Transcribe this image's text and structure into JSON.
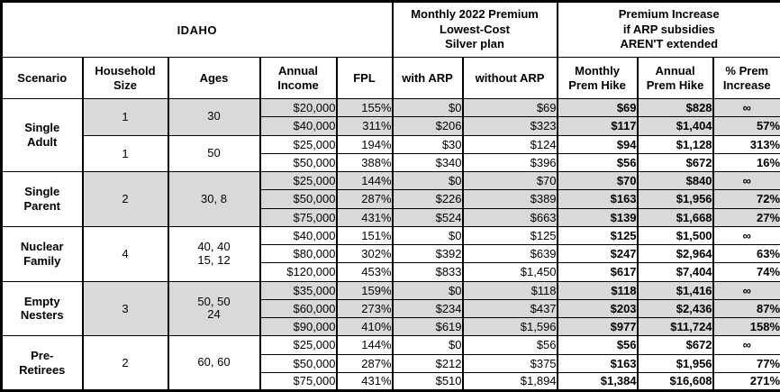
{
  "colors": {
    "shaded_row": "#d9d9d9",
    "border": "#000000",
    "background": "#ffffff",
    "text": "#000000"
  },
  "chart_data": {
    "type": "table",
    "title": "IDAHO",
    "infinity": "∞",
    "header_groups": {
      "premium": "Monthly 2022 Premium\nLowest-Cost\nSilver plan",
      "increase": "Premium Increase\nif ARP subsidies\nAREN'T extended"
    },
    "columns": {
      "scenario": "Scenario",
      "household": "Household\nSize",
      "ages": "Ages",
      "income": "Annual\nIncome",
      "fpl": "FPL",
      "with_arp": "with ARP",
      "without_arp": "without ARP",
      "monthly_hike": "Monthly\nPrem Hike",
      "annual_hike": "Annual\nPrem Hike",
      "pct_increase": "% Prem\nIncrease"
    },
    "groups": [
      {
        "scenario": "Single\nAdult",
        "subgroups": [
          {
            "household": "1",
            "ages": "30",
            "shaded": true,
            "rows": [
              {
                "income": "$20,000",
                "fpl": "155%",
                "with_arp": "$0",
                "without_arp": "$69",
                "monthly_hike": "$69",
                "annual_hike": "$828",
                "pct_increase": "∞"
              },
              {
                "income": "$40,000",
                "fpl": "311%",
                "with_arp": "$206",
                "without_arp": "$323",
                "monthly_hike": "$117",
                "annual_hike": "$1,404",
                "pct_increase": "57%"
              }
            ]
          },
          {
            "household": "1",
            "ages": "50",
            "shaded": false,
            "rows": [
              {
                "income": "$25,000",
                "fpl": "194%",
                "with_arp": "$30",
                "without_arp": "$124",
                "monthly_hike": "$94",
                "annual_hike": "$1,128",
                "pct_increase": "313%"
              },
              {
                "income": "$50,000",
                "fpl": "388%",
                "with_arp": "$340",
                "without_arp": "$396",
                "monthly_hike": "$56",
                "annual_hike": "$672",
                "pct_increase": "16%"
              }
            ]
          }
        ]
      },
      {
        "scenario": "Single\nParent",
        "subgroups": [
          {
            "household": "2",
            "ages": "30, 8",
            "shaded": true,
            "rows": [
              {
                "income": "$25,000",
                "fpl": "144%",
                "with_arp": "$0",
                "without_arp": "$70",
                "monthly_hike": "$70",
                "annual_hike": "$840",
                "pct_increase": "∞"
              },
              {
                "income": "$50,000",
                "fpl": "287%",
                "with_arp": "$226",
                "without_arp": "$389",
                "monthly_hike": "$163",
                "annual_hike": "$1,956",
                "pct_increase": "72%"
              },
              {
                "income": "$75,000",
                "fpl": "431%",
                "with_arp": "$524",
                "without_arp": "$663",
                "monthly_hike": "$139",
                "annual_hike": "$1,668",
                "pct_increase": "27%"
              }
            ]
          }
        ]
      },
      {
        "scenario": "Nuclear\nFamily",
        "subgroups": [
          {
            "household": "4",
            "ages": "40, 40\n15, 12",
            "shaded": false,
            "rows": [
              {
                "income": "$40,000",
                "fpl": "151%",
                "with_arp": "$0",
                "without_arp": "$125",
                "monthly_hike": "$125",
                "annual_hike": "$1,500",
                "pct_increase": "∞"
              },
              {
                "income": "$80,000",
                "fpl": "302%",
                "with_arp": "$392",
                "without_arp": "$639",
                "monthly_hike": "$247",
                "annual_hike": "$2,964",
                "pct_increase": "63%"
              },
              {
                "income": "$120,000",
                "fpl": "453%",
                "with_arp": "$833",
                "without_arp": "$1,450",
                "monthly_hike": "$617",
                "annual_hike": "$7,404",
                "pct_increase": "74%"
              }
            ]
          }
        ]
      },
      {
        "scenario": "Empty\nNesters",
        "subgroups": [
          {
            "household": "3",
            "ages": "50, 50\n24",
            "shaded": true,
            "rows": [
              {
                "income": "$35,000",
                "fpl": "159%",
                "with_arp": "$0",
                "without_arp": "$118",
                "monthly_hike": "$118",
                "annual_hike": "$1,416",
                "pct_increase": "∞"
              },
              {
                "income": "$60,000",
                "fpl": "273%",
                "with_arp": "$234",
                "without_arp": "$437",
                "monthly_hike": "$203",
                "annual_hike": "$2,436",
                "pct_increase": "87%"
              },
              {
                "income": "$90,000",
                "fpl": "410%",
                "with_arp": "$619",
                "without_arp": "$1,596",
                "monthly_hike": "$977",
                "annual_hike": "$11,724",
                "pct_increase": "158%"
              }
            ]
          }
        ]
      },
      {
        "scenario": "Pre-\nRetirees",
        "subgroups": [
          {
            "household": "2",
            "ages": "60, 60",
            "shaded": false,
            "rows": [
              {
                "income": "$25,000",
                "fpl": "144%",
                "with_arp": "$0",
                "without_arp": "$56",
                "monthly_hike": "$56",
                "annual_hike": "$672",
                "pct_increase": "∞"
              },
              {
                "income": "$50,000",
                "fpl": "287%",
                "with_arp": "$212",
                "without_arp": "$375",
                "monthly_hike": "$163",
                "annual_hike": "$1,956",
                "pct_increase": "77%"
              },
              {
                "income": "$75,000",
                "fpl": "431%",
                "with_arp": "$510",
                "without_arp": "$1,894",
                "monthly_hike": "$1,384",
                "annual_hike": "$16,608",
                "pct_increase": "271%"
              }
            ]
          }
        ]
      }
    ]
  }
}
